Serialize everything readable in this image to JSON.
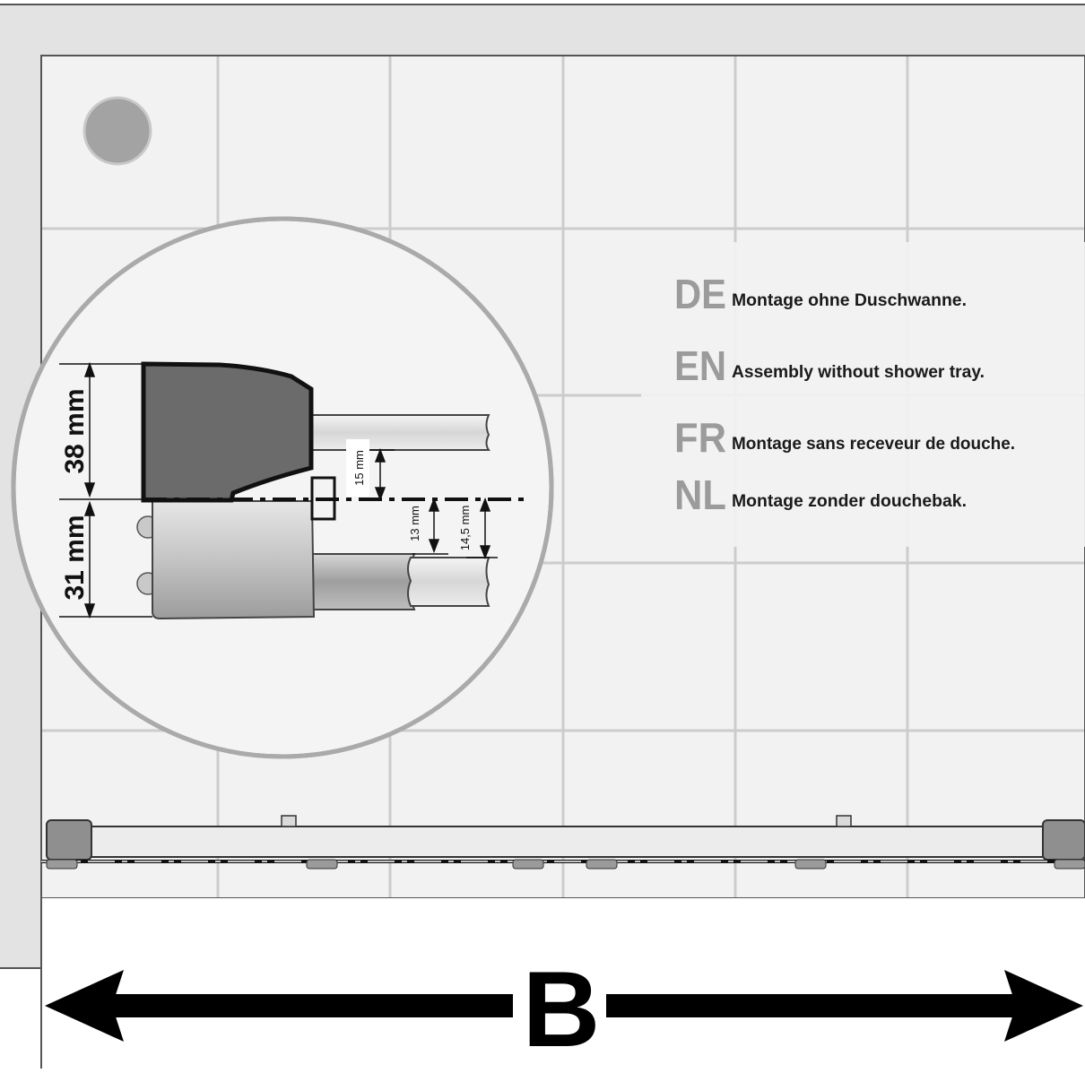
{
  "languages": [
    {
      "code": "DE",
      "text": "Montage ohne Duschwanne."
    },
    {
      "code": "EN",
      "text": "Assembly without shower tray."
    },
    {
      "code": "FR",
      "text": "Montage sans receveur de douche."
    },
    {
      "code": "NL",
      "text": "Montage zonder douchebak."
    }
  ],
  "dimensions": {
    "upper_height": "38 mm",
    "lower_height": "31 mm",
    "offset_upper": "15 mm",
    "offset_lower_a": "13 mm",
    "offset_lower_b": "14,5 mm"
  },
  "width_label": "B",
  "colors": {
    "tile_bg": "#f2f2f2",
    "grout": "#cfcfcf",
    "wall": "#e4e4e4",
    "profile_dark": "#6b6b6b",
    "profile_light": "#c8c8c8"
  }
}
